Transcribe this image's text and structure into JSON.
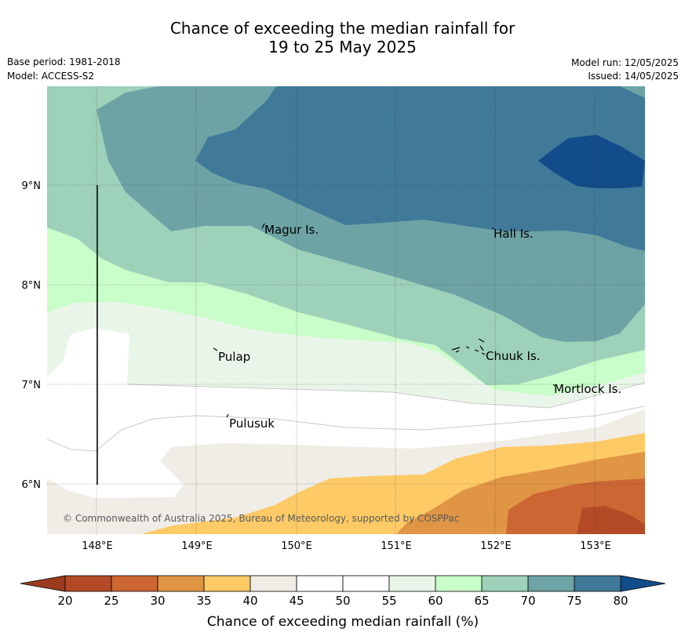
{
  "title_line1": "Chance of exceeding the median rainfall for",
  "title_line2": "19 to 25 May 2025",
  "base_period": "Base period: 1981-2018",
  "model": "Model: ACCESS-S2",
  "model_run": "Model run: 12/05/2025",
  "issued": "Issued: 14/05/2025",
  "copyright": "© Commonwealth of Australia 2025, Bureau of Meteorology, supported by COSPPac",
  "map": {
    "lon_labels": [
      "148°E",
      "149°E",
      "150°E",
      "151°E",
      "152°E",
      "153°E"
    ],
    "lat_labels": [
      "9°N",
      "8°N",
      "7°N",
      "6°N"
    ],
    "places": [
      {
        "name": "Magur Is."
      },
      {
        "name": "Hall Is."
      },
      {
        "name": "Pulap"
      },
      {
        "name": "Chuuk Is."
      },
      {
        "name": "Mortlock Is."
      },
      {
        "name": "Pulusuk"
      }
    ]
  },
  "legend": {
    "ticks": [
      "20",
      "25",
      "30",
      "35",
      "40",
      "45",
      "50",
      "55",
      "60",
      "65",
      "70",
      "75",
      "80"
    ],
    "label": "Chance of exceeding median rainfall (%)",
    "colors": [
      "#b34a25",
      "#cc6633",
      "#e09544",
      "#fdca66",
      "#f0ece6",
      "#ffffff",
      "#ffffff",
      "#eaf5e9",
      "#c9fdc9",
      "#9dd1b9",
      "#6da3a5",
      "#407a98"
    ],
    "under_color": "#9c3a1e",
    "over_color": "#124c8a"
  }
}
